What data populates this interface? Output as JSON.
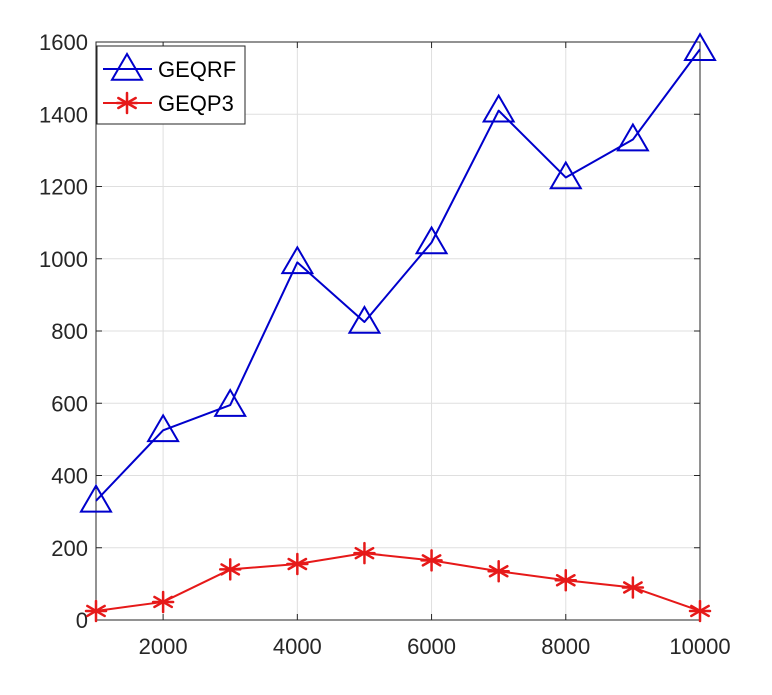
{
  "chart_data": {
    "type": "line",
    "title": "",
    "xlabel": "",
    "ylabel": "",
    "xlim": [
      1000,
      10000
    ],
    "ylim": [
      0,
      1600
    ],
    "xticks": [
      2000,
      4000,
      6000,
      8000,
      10000
    ],
    "yticks": [
      0,
      200,
      400,
      600,
      800,
      1000,
      1200,
      1400,
      1600
    ],
    "grid": true,
    "legend_position": "top-left",
    "x": [
      1000,
      2000,
      3000,
      4000,
      5000,
      6000,
      7000,
      8000,
      9000,
      10000
    ],
    "series": [
      {
        "name": "GEQRF",
        "color": "#0000cc",
        "marker": "triangle",
        "values": [
          330,
          525,
          595,
          990,
          825,
          1045,
          1410,
          1225,
          1330,
          1580
        ]
      },
      {
        "name": "GEQP3",
        "color": "#e61919",
        "marker": "asterisk",
        "values": [
          25,
          50,
          140,
          155,
          185,
          165,
          135,
          110,
          90,
          25
        ]
      }
    ]
  }
}
